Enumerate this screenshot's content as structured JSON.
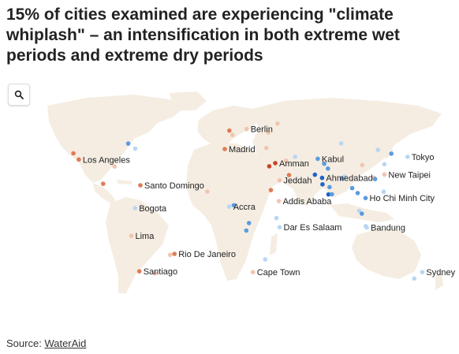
{
  "title": "15% of cities examined are experiencing \"climate whiplash\" – an intensification in both extreme wet periods and extreme dry periods",
  "search": {
    "icon": "search-icon"
  },
  "source": {
    "prefix": "Source:",
    "link_text": "WaterAid"
  },
  "colors": {
    "land": "#f5ede2",
    "dry_strong": "#c8442a",
    "dry": "#e07b55",
    "dry_light": "#f2c4ae",
    "wet_light": "#b9d6f2",
    "wet": "#5b9be0",
    "wet_strong": "#1f63c9"
  },
  "cities": [
    {
      "name": "Berlin",
      "lon": 13.4,
      "lat": 52.5,
      "shade": "dry_light"
    },
    {
      "name": "Madrid",
      "lon": -3.7,
      "lat": 40.4,
      "shade": "dry"
    },
    {
      "name": "Los Angeles",
      "lon": -118.2,
      "lat": 34.1,
      "shade": "dry"
    },
    {
      "name": "Amman",
      "lon": 35.9,
      "lat": 31.9,
      "shade": "dry_strong"
    },
    {
      "name": "Kabul",
      "lon": 69.2,
      "lat": 34.5,
      "shade": "wet"
    },
    {
      "name": "Tokyo",
      "lon": 139.7,
      "lat": 35.7,
      "shade": "wet_light"
    },
    {
      "name": "Ahmedabad",
      "lon": 72.6,
      "lat": 23.0,
      "shade": "wet_strong"
    },
    {
      "name": "New Taipei",
      "lon": 121.5,
      "lat": 25.0,
      "shade": "dry_light"
    },
    {
      "name": "Jeddah",
      "lon": 39.2,
      "lat": 21.5,
      "shade": "dry_light"
    },
    {
      "name": "Santo Domingo",
      "lon": -69.9,
      "lat": 18.5,
      "shade": "dry"
    },
    {
      "name": "Addis Ababa",
      "lon": 38.7,
      "lat": 9.0,
      "shade": "dry_light"
    },
    {
      "name": "Ho Chi Minh City",
      "lon": 106.7,
      "lat": 10.8,
      "shade": "wet"
    },
    {
      "name": "Bogota",
      "lon": -74.1,
      "lat": 4.7,
      "shade": "wet_light"
    },
    {
      "name": "Accra",
      "lon": -0.2,
      "lat": 5.6,
      "shade": "wet_light"
    },
    {
      "name": "Dar Es Salaam",
      "lon": 39.3,
      "lat": -6.8,
      "shade": "wet_light"
    },
    {
      "name": "Bandung",
      "lon": 107.6,
      "lat": -6.9,
      "shade": "wet_light"
    },
    {
      "name": "Lima",
      "lon": -77.0,
      "lat": -12.0,
      "shade": "dry_light"
    },
    {
      "name": "Rio De Janeiro",
      "lon": -43.2,
      "lat": -22.9,
      "shade": "dry"
    },
    {
      "name": "Santiago",
      "lon": -70.7,
      "lat": -33.4,
      "shade": "dry"
    },
    {
      "name": "Cape Town",
      "lon": 18.4,
      "lat": -33.9,
      "shade": "dry_light"
    },
    {
      "name": "Sydney",
      "lon": 151.2,
      "lat": -33.9,
      "shade": "wet_light"
    }
  ],
  "unlabeled_cities": [
    {
      "lon": -99.1,
      "lat": 19.4,
      "shade": "dry"
    },
    {
      "lon": -79.4,
      "lat": 43.7,
      "shade": "wet"
    },
    {
      "lon": -73.9,
      "lat": 40.7,
      "shade": "wet_light"
    },
    {
      "lon": -122.4,
      "lat": 37.8,
      "shade": "dry"
    },
    {
      "lon": -90.1,
      "lat": 29.9,
      "shade": "dry_light"
    },
    {
      "lon": -58.4,
      "lat": -34.6,
      "shade": "dry_light"
    },
    {
      "lon": -46.6,
      "lat": -23.5,
      "shade": "dry_light"
    },
    {
      "lon": 2.3,
      "lat": 48.9,
      "shade": "dry_light"
    },
    {
      "lon": -0.1,
      "lat": 51.5,
      "shade": "dry"
    },
    {
      "lon": 28.9,
      "lat": 41.0,
      "shade": "dry_light"
    },
    {
      "lon": 31.2,
      "lat": 30.0,
      "shade": "dry_strong"
    },
    {
      "lon": 44.4,
      "lat": 33.3,
      "shade": "dry_light"
    },
    {
      "lon": 51.4,
      "lat": 35.7,
      "shade": "wet_light"
    },
    {
      "lon": 46.7,
      "lat": 24.7,
      "shade": "dry"
    },
    {
      "lon": 32.5,
      "lat": 15.6,
      "shade": "dry"
    },
    {
      "lon": 3.4,
      "lat": 6.5,
      "shade": "wet"
    },
    {
      "lon": -17.4,
      "lat": 14.7,
      "shade": "dry_light"
    },
    {
      "lon": 15.3,
      "lat": -4.3,
      "shade": "wet"
    },
    {
      "lon": 13.2,
      "lat": -8.8,
      "shade": "wet"
    },
    {
      "lon": 36.8,
      "lat": -1.3,
      "shade": "wet_light"
    },
    {
      "lon": 28.0,
      "lat": -26.2,
      "shade": "wet_light"
    },
    {
      "lon": 67.0,
      "lat": 24.9,
      "shade": "wet_strong"
    },
    {
      "lon": 74.3,
      "lat": 31.5,
      "shade": "wet"
    },
    {
      "lon": 77.2,
      "lat": 28.6,
      "shade": "wet"
    },
    {
      "lon": 72.9,
      "lat": 19.1,
      "shade": "wet_strong"
    },
    {
      "lon": 78.5,
      "lat": 17.4,
      "shade": "wet"
    },
    {
      "lon": 77.6,
      "lat": 13.0,
      "shade": "wet_strong"
    },
    {
      "lon": 80.3,
      "lat": 13.1,
      "shade": "wet"
    },
    {
      "lon": 88.4,
      "lat": 22.6,
      "shade": "wet"
    },
    {
      "lon": 90.4,
      "lat": 23.8,
      "shade": "wet_light"
    },
    {
      "lon": 96.2,
      "lat": 16.8,
      "shade": "wet"
    },
    {
      "lon": 100.5,
      "lat": 13.8,
      "shade": "wet"
    },
    {
      "lon": 101.7,
      "lat": 3.1,
      "shade": "wet_light"
    },
    {
      "lon": 103.8,
      "lat": 1.4,
      "shade": "wet"
    },
    {
      "lon": 106.8,
      "lat": -6.2,
      "shade": "wet_light"
    },
    {
      "lon": 116.4,
      "lat": 39.9,
      "shade": "wet_light"
    },
    {
      "lon": 121.5,
      "lat": 31.2,
      "shade": "wet_light"
    },
    {
      "lon": 113.3,
      "lat": 23.1,
      "shade": "dry_light"
    },
    {
      "lon": 114.2,
      "lat": 22.3,
      "shade": "wet"
    },
    {
      "lon": 120.9,
      "lat": 14.6,
      "shade": "wet_light"
    },
    {
      "lon": 126.9,
      "lat": 37.6,
      "shade": "wet"
    },
    {
      "lon": 104.1,
      "lat": 30.7,
      "shade": "dry_light"
    },
    {
      "lon": 87.6,
      "lat": 43.8,
      "shade": "wet_light"
    },
    {
      "lon": 37.6,
      "lat": 55.8,
      "shade": "dry_light"
    },
    {
      "lon": 30.5,
      "lat": 50.4,
      "shade": "dry_light"
    },
    {
      "lon": 144.9,
      "lat": -37.8,
      "shade": "wet_light"
    }
  ]
}
